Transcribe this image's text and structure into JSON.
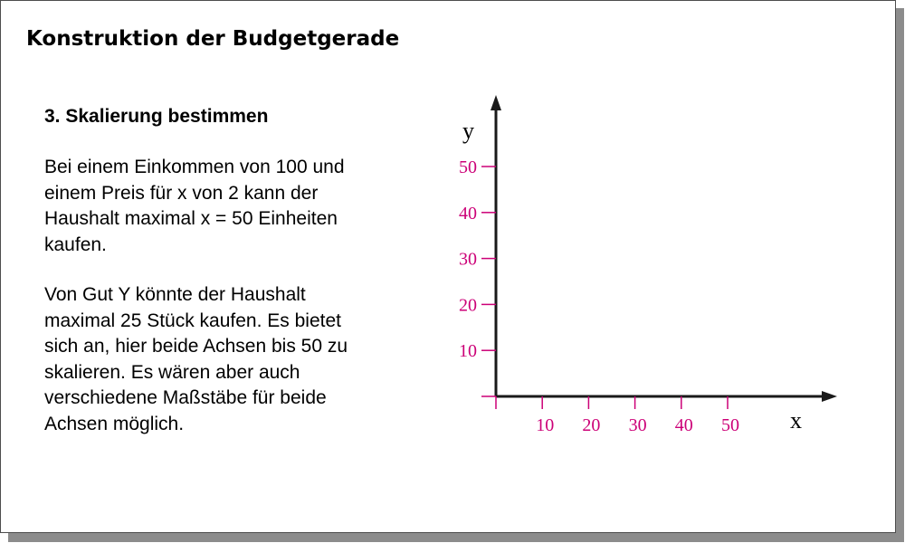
{
  "title": "Konstruktion der Budgetgerade",
  "step_heading": "3. Skalierung bestimmen",
  "paragraph1": [
    "Bei einem Einkommen von 100 und",
    "einem Preis für x von 2 kann der",
    "Haushalt maximal x = 50 Einheiten",
    "kaufen."
  ],
  "paragraph2": [
    "Von Gut Y könnte der Haushalt",
    "maximal 25 Stück kaufen. Es bietet",
    "sich an, hier beide Achsen bis 50 zu",
    "skalieren. Es wären aber auch",
    "verschiedene Maßstäbe für beide",
    "Achsen möglich."
  ],
  "diagram": {
    "x_axis_label": "x",
    "y_axis_label": "y",
    "x_ticks": [
      10,
      20,
      30,
      40,
      50
    ],
    "y_ticks": [
      10,
      20,
      30,
      40,
      50
    ],
    "tick_color": "#cc0077",
    "axis_color": "#1a1a1a"
  }
}
